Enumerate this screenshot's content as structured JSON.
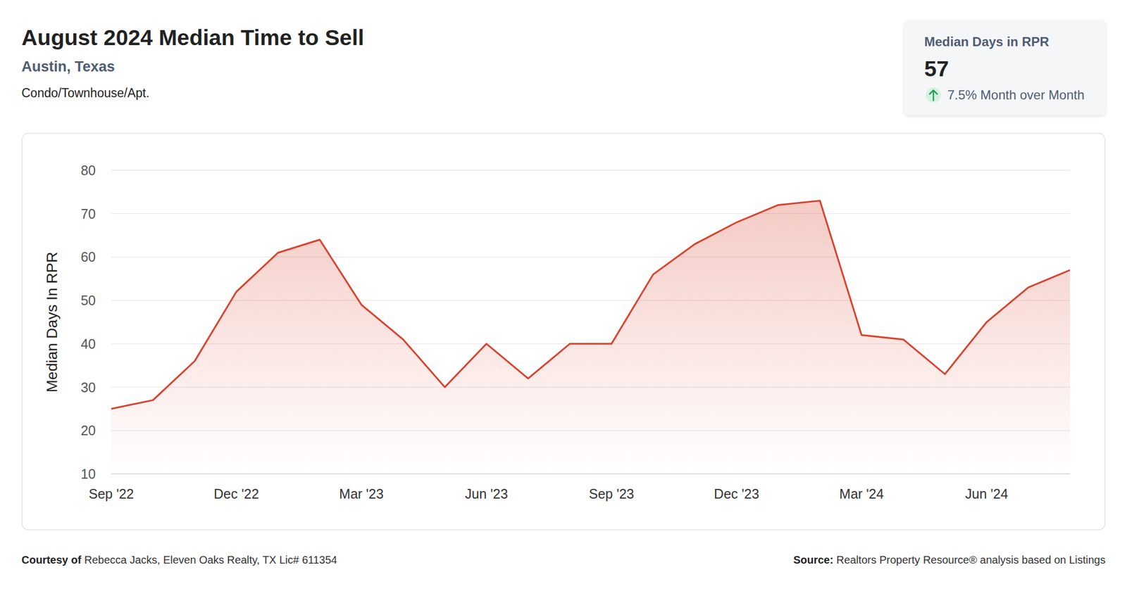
{
  "chart_data": {
    "type": "line",
    "title": "August 2024 Median Time to Sell",
    "subtitle": "Austin, Texas",
    "annotations": [
      "Condo/Townhouse/Apt."
    ],
    "y_label": "Median Days In RPR",
    "categories": [
      "Sep '22",
      null,
      null,
      "Dec '22",
      null,
      null,
      "Mar '23",
      null,
      null,
      "Jun '23",
      null,
      null,
      "Sep '23",
      null,
      null,
      "Dec '23",
      null,
      null,
      "Mar '24",
      null,
      null,
      "Jun '24",
      null,
      null
    ],
    "values": [
      25,
      27,
      36,
      52,
      61,
      64,
      49,
      41,
      30,
      40,
      32,
      40,
      40,
      56,
      63,
      68,
      72,
      73,
      42,
      41,
      33,
      45,
      53,
      57
    ],
    "color": "#d9432e",
    "ylim": [
      10,
      80
    ],
    "yticks": [
      10,
      20,
      30,
      40,
      50,
      60,
      70,
      80
    ],
    "grid": true
  },
  "card": {
    "label": "Median Days in RPR",
    "value": 57,
    "change": {
      "value": 7.5,
      "label": "7.5% Month over Month"
    }
  },
  "footer": {
    "courtesy_label": "Courtesy of",
    "courtesy": "Rebecca Jacks, Eleven Oaks Realty, TX Lic# 611354",
    "source_label": "Source:",
    "source": "Realtors Property Resource® analysis based on Listings"
  }
}
